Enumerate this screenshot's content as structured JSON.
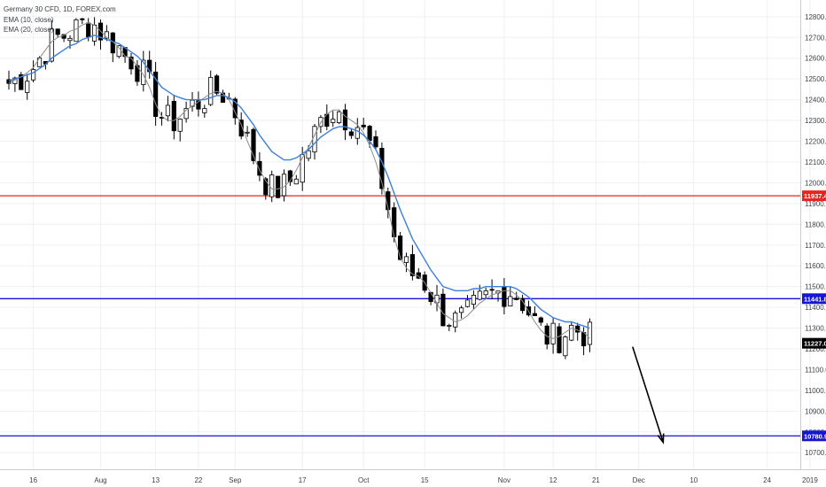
{
  "legend": {
    "symbol": "Germany 30 CFD, 1D, FOREX.com",
    "ema10": "EMA (10, close)",
    "ema20": "EMA (20, close)"
  },
  "colors": {
    "bull": "#ffffff",
    "bear": "#000000",
    "ema10": "#8c8c8c",
    "ema20": "#3d7fd9",
    "red_level": "#e8241c",
    "blue_level": "#1515d6",
    "last_price": "#000000"
  },
  "chart_data": {
    "type": "candlestick",
    "title": "Germany 30 CFD, 1D, FOREX.com",
    "ylim": [
      10620,
      12940
    ],
    "y_ticks": [
      10700,
      10800,
      10900,
      11000,
      11100,
      11200,
      11300,
      11400,
      11500,
      11600,
      11700,
      11800,
      11900,
      12000,
      12100,
      12200,
      12300,
      12400,
      12500,
      12600,
      12700,
      12800
    ],
    "x_ticks": [
      {
        "label": "16",
        "i": 4
      },
      {
        "label": "Aug",
        "i": 15
      },
      {
        "label": "13",
        "i": 24
      },
      {
        "label": "22",
        "i": 31
      },
      {
        "label": "Sep",
        "i": 37
      },
      {
        "label": "17",
        "i": 48
      },
      {
        "label": "Oct",
        "i": 58
      },
      {
        "label": "15",
        "i": 68
      },
      {
        "label": "Nov",
        "i": 81
      },
      {
        "label": "12",
        "i": 89
      },
      {
        "label": "21",
        "i": 96
      },
      {
        "label": "Dec",
        "i": 103
      },
      {
        "label": "10",
        "i": 112
      },
      {
        "label": "24",
        "i": 124
      },
      {
        "label": "2019",
        "i": 131
      }
    ],
    "horizontal_lines": [
      {
        "value": 11937.4,
        "label": "11937.4",
        "color": "#e8241c"
      },
      {
        "value": 11441.8,
        "label": "11441.8",
        "color": "#1515d6"
      },
      {
        "value": 10780.9,
        "label": "10780.9",
        "color": "#1515d6"
      }
    ],
    "last_price": {
      "value": 11227.0,
      "label": "11227.0"
    },
    "series": [
      {
        "name": "EMA (10, close)",
        "color": "#8c8c8c",
        "values": [
          12480,
          12495,
          12510,
          12530,
          12555,
          12600,
          12640,
          12680,
          12700,
          12710,
          12730,
          12740,
          12760,
          12770,
          12760,
          12730,
          12700,
          12680,
          12650,
          12610,
          12600,
          12560,
          12520,
          12460,
          12380,
          12320,
          12300,
          12300,
          12320,
          12350,
          12370,
          12390,
          12410,
          12430,
          12440,
          12430,
          12400,
          12340,
          12280,
          12200,
          12130,
          12060,
          12010,
          11970,
          11970,
          11980,
          12010,
          12060,
          12120,
          12170,
          12230,
          12290,
          12330,
          12350,
          12350,
          12320,
          12300,
          12280,
          12240,
          12180,
          12100,
          12000,
          11880,
          11740,
          11640,
          11590,
          11560,
          11550,
          11520,
          11470,
          11420,
          11370,
          11350,
          11330,
          11340,
          11360,
          11390,
          11420,
          11440,
          11460,
          11470,
          11480,
          11480,
          11460,
          11430,
          11380,
          11330,
          11290,
          11260,
          11250,
          11260,
          11280,
          11300,
          11290,
          11280,
          11250
        ]
      },
      {
        "name": "EMA (20, close)",
        "color": "#3d7fd9",
        "values": [
          12490,
          12500,
          12510,
          12520,
          12530,
          12550,
          12570,
          12600,
          12620,
          12640,
          12660,
          12670,
          12690,
          12700,
          12710,
          12700,
          12690,
          12680,
          12670,
          12650,
          12630,
          12610,
          12580,
          12540,
          12500,
          12460,
          12440,
          12420,
          12410,
          12400,
          12400,
          12400,
          12400,
          12410,
          12420,
          12420,
          12410,
          12390,
          12360,
          12320,
          12280,
          12230,
          12190,
          12150,
          12130,
          12110,
          12110,
          12120,
          12140,
          12160,
          12190,
          12220,
          12240,
          12260,
          12270,
          12270,
          12260,
          12250,
          12230,
          12200,
          12160,
          12100,
          12030,
          11950,
          11870,
          11800,
          11730,
          11680,
          11630,
          11580,
          11540,
          11500,
          11490,
          11480,
          11480,
          11480,
          11490,
          11490,
          11500,
          11500,
          11500,
          11500,
          11500,
          11490,
          11470,
          11450,
          11420,
          11390,
          11370,
          11350,
          11340,
          11330,
          11330,
          11320,
          11310,
          11300
        ]
      }
    ],
    "annotations": [
      {
        "type": "arrow",
        "from": {
          "i": 102,
          "value": 11210
        },
        "to": {
          "i": 107,
          "value": 10750
        }
      }
    ]
  }
}
